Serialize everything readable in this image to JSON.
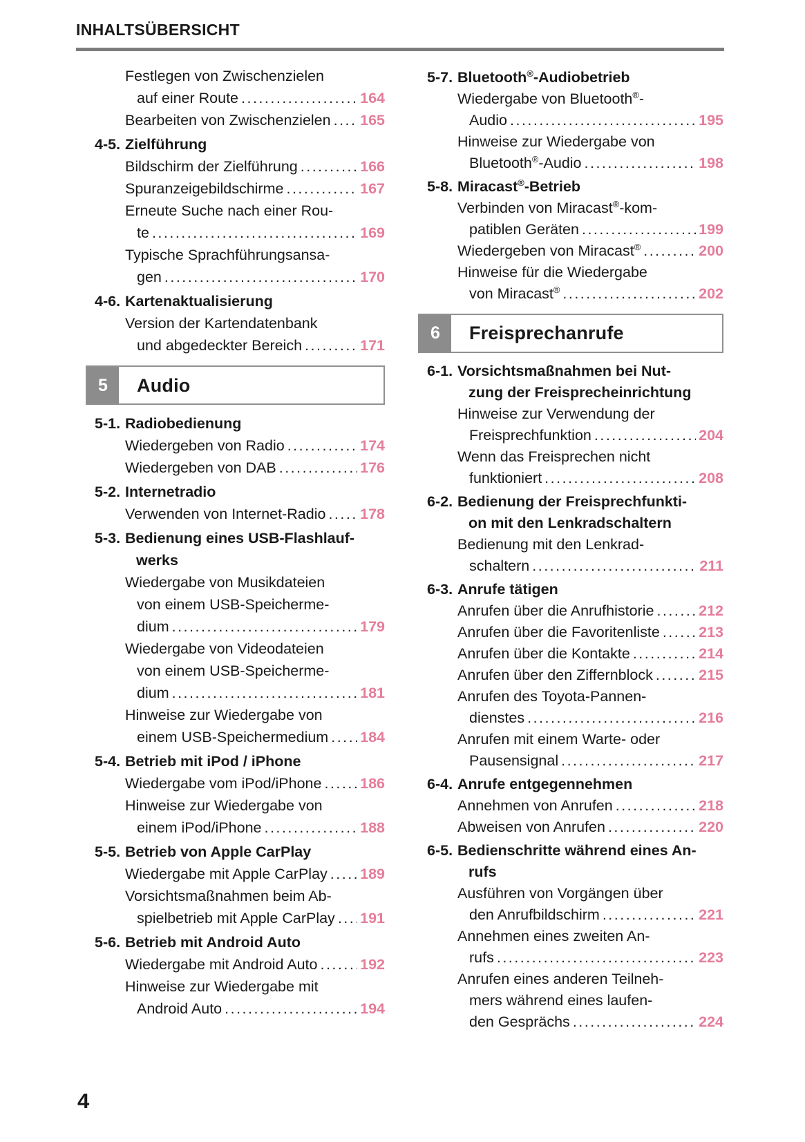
{
  "header": {
    "title": "INHALTSÜBERSICHT"
  },
  "footer": {
    "page_number": "4"
  },
  "colors": {
    "accent": "#e57d9b",
    "badge": "#8c8c8c",
    "divider": "#7d7d7d",
    "text": "#191919"
  },
  "columns": [
    {
      "blocks": [
        {
          "type": "entry",
          "lines": [
            "Festlegen von Zwischenzielen",
            "auf einer Route"
          ],
          "page": "164"
        },
        {
          "type": "entry",
          "lines": [
            "Bearbeiten von Zwischenzielen"
          ],
          "page": "165"
        },
        {
          "type": "section",
          "label": "4-5.",
          "lines": [
            "Zielführung"
          ]
        },
        {
          "type": "entry",
          "lines": [
            "Bildschirm der Zielführung"
          ],
          "page": "166"
        },
        {
          "type": "entry",
          "lines": [
            "Spuranzeigebildschirme"
          ],
          "page": "167"
        },
        {
          "type": "entry",
          "lines": [
            "Erneute Suche nach einer Rou-",
            "te"
          ],
          "page": "169"
        },
        {
          "type": "entry",
          "lines": [
            "Typische Sprachführungsansa-",
            "gen"
          ],
          "page": "170"
        },
        {
          "type": "section",
          "label": "4-6.",
          "lines": [
            "Kartenaktualisierung"
          ]
        },
        {
          "type": "entry",
          "lines": [
            "Version der Kartendatenbank",
            "und abgedeckter Bereich"
          ],
          "page": "171"
        },
        {
          "type": "chapter",
          "num": "5",
          "title": "Audio"
        },
        {
          "type": "section",
          "label": "5-1.",
          "lines": [
            "Radiobedienung"
          ]
        },
        {
          "type": "entry",
          "lines": [
            "Wiedergeben von Radio"
          ],
          "page": "174"
        },
        {
          "type": "entry",
          "lines": [
            "Wiedergeben von DAB"
          ],
          "page": "176"
        },
        {
          "type": "section",
          "label": "5-2.",
          "lines": [
            "Internetradio"
          ]
        },
        {
          "type": "entry",
          "lines": [
            "Verwenden von Internet-Radio"
          ],
          "page": "178"
        },
        {
          "type": "section",
          "label": "5-3.",
          "lines": [
            "Bedienung eines USB-Flashlauf-",
            "werks"
          ]
        },
        {
          "type": "entry",
          "lines": [
            "Wiedergabe von Musikdateien",
            "von einem USB-Speicherme-",
            "dium"
          ],
          "page": "179"
        },
        {
          "type": "entry",
          "lines": [
            "Wiedergabe von Videodateien",
            "von einem USB-Speicherme-",
            "dium"
          ],
          "page": "181"
        },
        {
          "type": "entry",
          "lines": [
            "Hinweise zur Wiedergabe von",
            "einem USB-Speichermedium"
          ],
          "page": "184"
        },
        {
          "type": "section",
          "label": "5-4.",
          "lines": [
            "Betrieb mit iPod / iPhone"
          ]
        },
        {
          "type": "entry",
          "lines": [
            "Wiedergabe vom iPod/iPhone"
          ],
          "page": "186"
        },
        {
          "type": "entry",
          "lines": [
            "Hinweise zur Wiedergabe von",
            "einem iPod/iPhone"
          ],
          "page": "188"
        },
        {
          "type": "section",
          "label": "5-5.",
          "lines": [
            "Betrieb von Apple CarPlay"
          ]
        },
        {
          "type": "entry",
          "lines": [
            "Wiedergabe mit Apple CarPlay"
          ],
          "page": "189"
        },
        {
          "type": "entry",
          "lines": [
            "Vorsichtsmaßnahmen beim Ab-",
            "spielbetrieb mit Apple CarPlay"
          ],
          "page": "191"
        },
        {
          "type": "section",
          "label": "5-6.",
          "lines": [
            "Betrieb mit Android Auto"
          ]
        },
        {
          "type": "entry",
          "lines": [
            "Wiedergabe mit Android Auto"
          ],
          "page": "192"
        },
        {
          "type": "entry",
          "lines": [
            "Hinweise zur Wiedergabe mit",
            "Android Auto"
          ],
          "page": "194"
        }
      ]
    },
    {
      "blocks": [
        {
          "type": "section",
          "label": "5-7.",
          "lines": [
            "Bluetooth®-Audiobetrieb"
          ]
        },
        {
          "type": "entry",
          "lines": [
            "Wiedergabe von Bluetooth®-",
            "Audio"
          ],
          "page": "195"
        },
        {
          "type": "entry",
          "lines": [
            "Hinweise zur Wiedergabe von",
            "Bluetooth®-Audio"
          ],
          "page": "198"
        },
        {
          "type": "section",
          "label": "5-8.",
          "lines": [
            "Miracast®-Betrieb"
          ]
        },
        {
          "type": "entry",
          "lines": [
            "Verbinden von Miracast®-kom-",
            "patiblen Geräten"
          ],
          "page": "199"
        },
        {
          "type": "entry",
          "lines": [
            "Wiedergeben von Miracast®"
          ],
          "page": "200"
        },
        {
          "type": "entry",
          "lines": [
            "Hinweise für die Wiedergabe",
            "von Miracast®"
          ],
          "page": "202"
        },
        {
          "type": "chapter",
          "num": "6",
          "title": "Freisprechanrufe"
        },
        {
          "type": "section",
          "label": "6-1.",
          "lines": [
            "Vorsichtsmaßnahmen bei Nut-",
            "zung der Freisprecheinrichtung"
          ]
        },
        {
          "type": "entry",
          "lines": [
            "Hinweise zur Verwendung der",
            "Freisprechfunktion"
          ],
          "page": "204"
        },
        {
          "type": "entry",
          "lines": [
            "Wenn das Freisprechen nicht",
            "funktioniert"
          ],
          "page": "208"
        },
        {
          "type": "section",
          "label": "6-2.",
          "lines": [
            "Bedienung der Freisprechfunkti-",
            "on mit den Lenkradschaltern"
          ]
        },
        {
          "type": "entry",
          "lines": [
            "Bedienung mit den Lenkrad-",
            "schaltern"
          ],
          "page": "211"
        },
        {
          "type": "section",
          "label": "6-3.",
          "lines": [
            "Anrufe tätigen"
          ]
        },
        {
          "type": "entry",
          "lines": [
            "Anrufen über die Anrufhistorie"
          ],
          "page": "212"
        },
        {
          "type": "entry",
          "lines": [
            "Anrufen über die Favoritenliste"
          ],
          "page": "213"
        },
        {
          "type": "entry",
          "lines": [
            "Anrufen über die Kontakte"
          ],
          "page": "214"
        },
        {
          "type": "entry",
          "lines": [
            "Anrufen über den Ziffernblock"
          ],
          "page": "215"
        },
        {
          "type": "entry",
          "lines": [
            "Anrufen des Toyota-Pannen-",
            "dienstes"
          ],
          "page": "216"
        },
        {
          "type": "entry",
          "lines": [
            "Anrufen mit einem Warte- oder",
            "Pausensignal"
          ],
          "page": "217"
        },
        {
          "type": "section",
          "label": "6-4.",
          "lines": [
            "Anrufe entgegennehmen"
          ]
        },
        {
          "type": "entry",
          "lines": [
            "Annehmen von Anrufen"
          ],
          "page": "218"
        },
        {
          "type": "entry",
          "lines": [
            "Abweisen von Anrufen"
          ],
          "page": "220"
        },
        {
          "type": "section",
          "label": "6-5.",
          "lines": [
            "Bedienschritte während eines An-",
            "rufs"
          ]
        },
        {
          "type": "entry",
          "lines": [
            "Ausführen von Vorgängen über",
            "den Anrufbildschirm"
          ],
          "page": "221"
        },
        {
          "type": "entry",
          "lines": [
            "Annehmen eines zweiten An-",
            "rufs"
          ],
          "page": "223"
        },
        {
          "type": "entry",
          "lines": [
            "Anrufen eines anderen Teilneh-",
            "mers während eines laufen-",
            "den Gesprächs"
          ],
          "page": "224"
        }
      ]
    }
  ]
}
